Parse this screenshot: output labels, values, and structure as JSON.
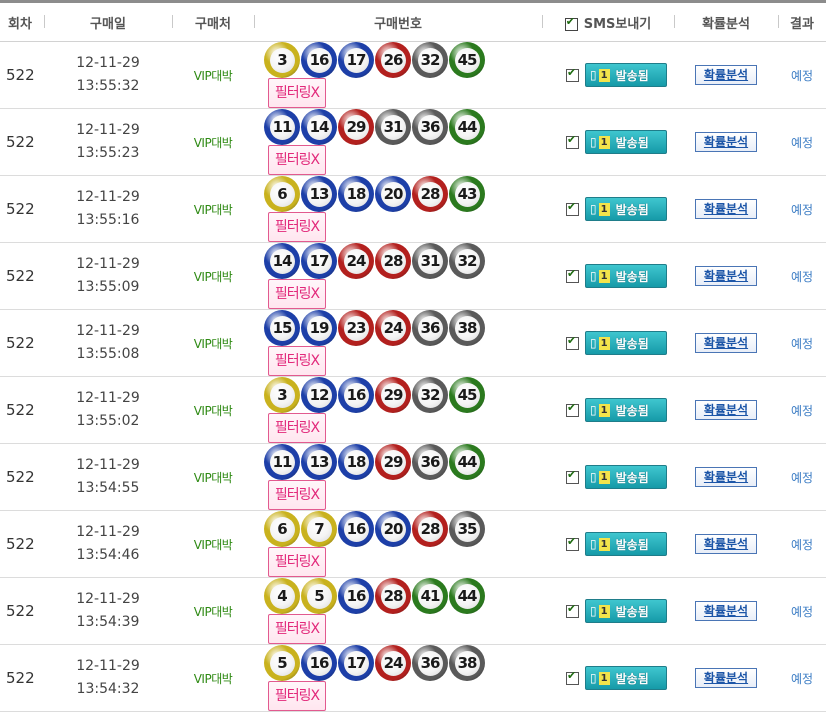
{
  "header": {
    "round": "회차",
    "date": "구매일",
    "store": "구매처",
    "numbers": "구매번호",
    "sms": "SMS보내기",
    "analysis": "확률분석",
    "result": "결과"
  },
  "ball_colors": {
    "yellow": "#c9b21e",
    "blue": "#1d3fa8",
    "red": "#b3201e",
    "gray": "#5a5a5a",
    "green": "#2b7a1e"
  },
  "rows": [
    {
      "round": "522",
      "date": "12-11-29",
      "time": "13:55:32",
      "store": "VIP대박",
      "numbers": [
        "3",
        "16",
        "17",
        "26",
        "32",
        "45"
      ],
      "filter": "필터링X",
      "sms_count": "1",
      "sms_status": "발송됨",
      "analysis": "확률분석",
      "result": "예정"
    },
    {
      "round": "522",
      "date": "12-11-29",
      "time": "13:55:23",
      "store": "VIP대박",
      "numbers": [
        "11",
        "14",
        "29",
        "31",
        "36",
        "44"
      ],
      "filter": "필터링X",
      "sms_count": "1",
      "sms_status": "발송됨",
      "analysis": "확률분석",
      "result": "예정"
    },
    {
      "round": "522",
      "date": "12-11-29",
      "time": "13:55:16",
      "store": "VIP대박",
      "numbers": [
        "6",
        "13",
        "18",
        "20",
        "28",
        "43"
      ],
      "filter": "필터링X",
      "sms_count": "1",
      "sms_status": "발송됨",
      "analysis": "확률분석",
      "result": "예정"
    },
    {
      "round": "522",
      "date": "12-11-29",
      "time": "13:55:09",
      "store": "VIP대박",
      "numbers": [
        "14",
        "17",
        "24",
        "28",
        "31",
        "32"
      ],
      "filter": "필터링X",
      "sms_count": "1",
      "sms_status": "발송됨",
      "analysis": "확률분석",
      "result": "예정"
    },
    {
      "round": "522",
      "date": "12-11-29",
      "time": "13:55:08",
      "store": "VIP대박",
      "numbers": [
        "15",
        "19",
        "23",
        "24",
        "36",
        "38"
      ],
      "filter": "필터링X",
      "sms_count": "1",
      "sms_status": "발송됨",
      "analysis": "확률분석",
      "result": "예정"
    },
    {
      "round": "522",
      "date": "12-11-29",
      "time": "13:55:02",
      "store": "VIP대박",
      "numbers": [
        "3",
        "12",
        "16",
        "29",
        "32",
        "45"
      ],
      "filter": "필터링X",
      "sms_count": "1",
      "sms_status": "발송됨",
      "analysis": "확률분석",
      "result": "예정"
    },
    {
      "round": "522",
      "date": "12-11-29",
      "time": "13:54:55",
      "store": "VIP대박",
      "numbers": [
        "11",
        "13",
        "18",
        "29",
        "36",
        "44"
      ],
      "filter": "필터링X",
      "sms_count": "1",
      "sms_status": "발송됨",
      "analysis": "확률분석",
      "result": "예정"
    },
    {
      "round": "522",
      "date": "12-11-29",
      "time": "13:54:46",
      "store": "VIP대박",
      "numbers": [
        "6",
        "7",
        "16",
        "20",
        "28",
        "35"
      ],
      "filter": "필터링X",
      "sms_count": "1",
      "sms_status": "발송됨",
      "analysis": "확률분석",
      "result": "예정"
    },
    {
      "round": "522",
      "date": "12-11-29",
      "time": "13:54:39",
      "store": "VIP대박",
      "numbers": [
        "4",
        "5",
        "16",
        "28",
        "41",
        "44"
      ],
      "filter": "필터링X",
      "sms_count": "1",
      "sms_status": "발송됨",
      "analysis": "확률분석",
      "result": "예정"
    },
    {
      "round": "522",
      "date": "12-11-29",
      "time": "13:54:32",
      "store": "VIP대박",
      "numbers": [
        "5",
        "16",
        "17",
        "24",
        "36",
        "38"
      ],
      "filter": "필터링X",
      "sms_count": "1",
      "sms_status": "발송됨",
      "analysis": "확률분석",
      "result": "예정"
    }
  ]
}
